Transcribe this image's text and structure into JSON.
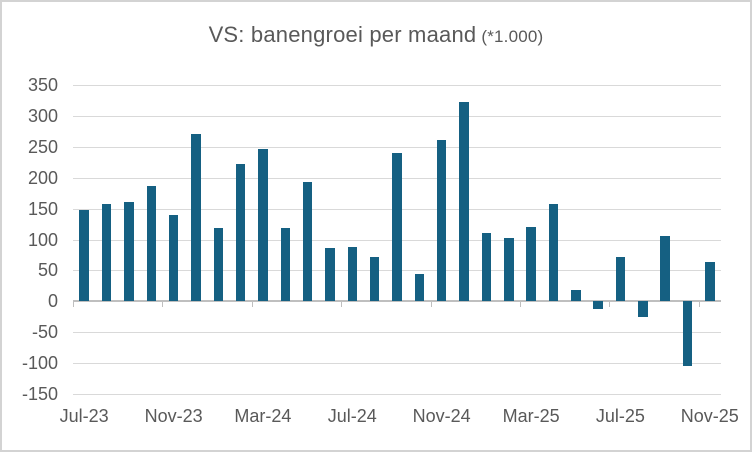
{
  "window": {
    "background": "#FFFFFF",
    "border_color": "#D3D3D3"
  },
  "title": {
    "text": "VS: banengroei per maand",
    "suffix": "(*1.000)",
    "color": "#595959"
  },
  "chart_data": {
    "type": "bar",
    "title": "VS: banengroei per maand (*1.000)",
    "categories": [
      "Jul-23",
      "Aug-23",
      "Sep-23",
      "Oct-23",
      "Nov-23",
      "Dec-23",
      "Jan-24",
      "Feb-24",
      "Mar-24",
      "Apr-24",
      "May-24",
      "Jun-24",
      "Jul-24",
      "Aug-24",
      "Sep-24",
      "Oct-24",
      "Nov-24",
      "Dec-24",
      "Jan-25",
      "Feb-25",
      "Mar-25",
      "Apr-25",
      "May-25",
      "Jun-25",
      "Jul-25",
      "Aug-25",
      "Sep-25",
      "Oct-25",
      "Nov-25"
    ],
    "values": [
      148,
      157,
      160,
      186,
      140,
      270,
      119,
      222,
      246,
      118,
      193,
      87,
      88,
      71,
      240,
      44,
      261,
      323,
      111,
      102,
      120,
      158,
      19,
      -13,
      72,
      -26,
      105,
      -105,
      64
    ],
    "x_tick_labels": [
      "Jul-23",
      "Nov-23",
      "Mar-24",
      "Jul-24",
      "Nov-24",
      "Mar-25",
      "Jul-25",
      "Nov-25"
    ],
    "x_label_every": 4,
    "ylim": [
      -150,
      350
    ],
    "y_tick_step": 50,
    "y_tick_labels": [
      "350",
      "300",
      "250",
      "200",
      "150",
      "100",
      "50",
      "0",
      "-50",
      "-100",
      "-150"
    ],
    "grid": true,
    "legend": false,
    "bar_color": "#156082",
    "gridline_color": "#D9D9D9",
    "axis_color": "#BFBFBF",
    "label_color": "#595959"
  }
}
